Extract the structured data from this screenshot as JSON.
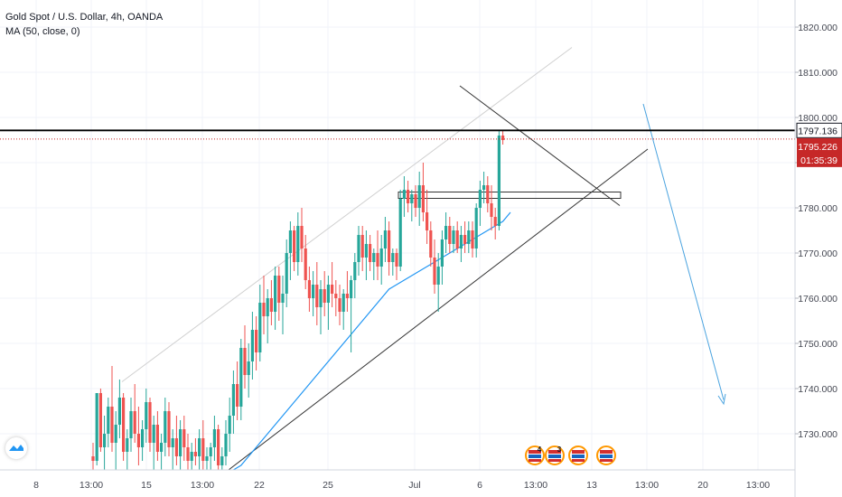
{
  "header": {
    "symbol_line": "Gold Spot / U.S. Dollar, 4h, OANDA",
    "indicator_line": "MA (50, close, 0)"
  },
  "colors": {
    "up": "#26a69a",
    "down": "#ef5350",
    "ma": "#2196f3",
    "projection": "#4aa3df",
    "current_price_bg": "#c62828",
    "level_line": "#000000"
  },
  "chart_data": {
    "type": "candlestick",
    "y_axis": {
      "min": 1722,
      "max": 1826,
      "ticks": [
        1730,
        1740,
        1750,
        1760,
        1770,
        1780,
        1790,
        1800,
        1810,
        1820
      ],
      "tick_labels": [
        "1730.000",
        "1740.000",
        "1750.000",
        "1760.000",
        "1770.000",
        "1780.000",
        "1790.000",
        "1800.000",
        "1810.000",
        "1820.000"
      ]
    },
    "x_axis": {
      "tick_labels": [
        "8",
        "13:00",
        "15",
        "13:00",
        "22",
        "25",
        "Jul",
        "6",
        "13:00",
        "13",
        "13:00",
        "20",
        "13:00"
      ]
    },
    "price_labels": {
      "level": "1797.136",
      "current": "1795.226",
      "countdown": "01:35:39"
    },
    "level_value": 1797.136,
    "current_value": 1795.226,
    "candles": [
      [
        1725,
        1728,
        1722,
        1724
      ],
      [
        1724,
        1739,
        1723,
        1739
      ],
      [
        1739,
        1740,
        1726,
        1727
      ],
      [
        1727,
        1734,
        1722,
        1730
      ],
      [
        1730,
        1738,
        1727,
        1736
      ],
      [
        1736,
        1745,
        1726,
        1728
      ],
      [
        1728,
        1735,
        1722,
        1732
      ],
      [
        1732,
        1742,
        1729,
        1738
      ],
      [
        1738,
        1739,
        1724,
        1726
      ],
      [
        1726,
        1731,
        1722,
        1729
      ],
      [
        1729,
        1738,
        1726,
        1735
      ],
      [
        1735,
        1741,
        1728,
        1730
      ],
      [
        1730,
        1736,
        1723,
        1727
      ],
      [
        1727,
        1733,
        1724,
        1731
      ],
      [
        1731,
        1740,
        1728,
        1737
      ],
      [
        1737,
        1738,
        1726,
        1728
      ],
      [
        1728,
        1734,
        1722,
        1732
      ],
      [
        1732,
        1735,
        1724,
        1726
      ],
      [
        1726,
        1730,
        1722,
        1728
      ],
      [
        1728,
        1738,
        1725,
        1735
      ],
      [
        1735,
        1737,
        1725,
        1727
      ],
      [
        1727,
        1731,
        1722,
        1729
      ],
      [
        1729,
        1734,
        1723,
        1725
      ],
      [
        1725,
        1733,
        1722,
        1731
      ],
      [
        1731,
        1734,
        1724,
        1727
      ],
      [
        1727,
        1730,
        1722,
        1724
      ],
      [
        1724,
        1728,
        1722,
        1726
      ],
      [
        1726,
        1729,
        1723,
        1725
      ],
      [
        1725,
        1731,
        1722,
        1729
      ],
      [
        1729,
        1733,
        1722,
        1724
      ],
      [
        1724,
        1727,
        1722,
        1725
      ],
      [
        1725,
        1728,
        1722,
        1727
      ],
      [
        1727,
        1734,
        1724,
        1731
      ],
      [
        1731,
        1732,
        1722,
        1723
      ],
      [
        1723,
        1727,
        1722,
        1725
      ],
      [
        1725,
        1733,
        1723,
        1730
      ],
      [
        1730,
        1738,
        1726,
        1734
      ],
      [
        1734,
        1744,
        1730,
        1741
      ],
      [
        1741,
        1746,
        1733,
        1736
      ],
      [
        1736,
        1751,
        1733,
        1749
      ],
      [
        1749,
        1754,
        1740,
        1743
      ],
      [
        1743,
        1750,
        1738,
        1746
      ],
      [
        1746,
        1757,
        1742,
        1753
      ],
      [
        1753,
        1756,
        1744,
        1748
      ],
      [
        1748,
        1763,
        1746,
        1759
      ],
      [
        1759,
        1765,
        1752,
        1756
      ],
      [
        1756,
        1762,
        1750,
        1760
      ],
      [
        1760,
        1764,
        1754,
        1757
      ],
      [
        1757,
        1767,
        1753,
        1765
      ],
      [
        1765,
        1767,
        1755,
        1759
      ],
      [
        1759,
        1765,
        1752,
        1761
      ],
      [
        1761,
        1773,
        1758,
        1770
      ],
      [
        1770,
        1777,
        1764,
        1775
      ],
      [
        1775,
        1776,
        1766,
        1768
      ],
      [
        1768,
        1779,
        1765,
        1776
      ],
      [
        1776,
        1780,
        1768,
        1771
      ],
      [
        1771,
        1774,
        1762,
        1764
      ],
      [
        1764,
        1767,
        1757,
        1760
      ],
      [
        1760,
        1766,
        1756,
        1763
      ],
      [
        1763,
        1768,
        1754,
        1758
      ],
      [
        1758,
        1764,
        1752,
        1762
      ],
      [
        1762,
        1766,
        1756,
        1759
      ],
      [
        1759,
        1765,
        1753,
        1763
      ],
      [
        1763,
        1768,
        1758,
        1761
      ],
      [
        1761,
        1764,
        1756,
        1760
      ],
      [
        1760,
        1763,
        1754,
        1757
      ],
      [
        1757,
        1762,
        1753,
        1761
      ],
      [
        1761,
        1766,
        1757,
        1760
      ],
      [
        1760,
        1765,
        1748,
        1764
      ],
      [
        1764,
        1770,
        1760,
        1768
      ],
      [
        1768,
        1776,
        1765,
        1774
      ],
      [
        1774,
        1776,
        1766,
        1769
      ],
      [
        1769,
        1775,
        1764,
        1772
      ],
      [
        1772,
        1774,
        1766,
        1768
      ],
      [
        1768,
        1771,
        1764,
        1770
      ],
      [
        1770,
        1775,
        1764,
        1767
      ],
      [
        1767,
        1774,
        1763,
        1771
      ],
      [
        1771,
        1778,
        1768,
        1775
      ],
      [
        1775,
        1777,
        1765,
        1768
      ],
      [
        1768,
        1771,
        1765,
        1770
      ],
      [
        1770,
        1771,
        1764,
        1767
      ],
      [
        1767,
        1784,
        1766,
        1782
      ],
      [
        1782,
        1787,
        1778,
        1784
      ],
      [
        1784,
        1786,
        1779,
        1781
      ],
      [
        1781,
        1784,
        1777,
        1783
      ],
      [
        1783,
        1785,
        1778,
        1780
      ],
      [
        1780,
        1788,
        1776,
        1785
      ],
      [
        1785,
        1790,
        1777,
        1779
      ],
      [
        1779,
        1784,
        1772,
        1775
      ],
      [
        1775,
        1777,
        1767,
        1769
      ],
      [
        1769,
        1773,
        1761,
        1763
      ],
      [
        1763,
        1770,
        1757,
        1767
      ],
      [
        1767,
        1775,
        1763,
        1773
      ],
      [
        1773,
        1779,
        1770,
        1776
      ],
      [
        1776,
        1778,
        1770,
        1772
      ],
      [
        1772,
        1776,
        1770,
        1775
      ],
      [
        1775,
        1777,
        1770,
        1771
      ],
      [
        1771,
        1776,
        1768,
        1774
      ],
      [
        1774,
        1777,
        1770,
        1772
      ],
      [
        1772,
        1777,
        1770,
        1775
      ],
      [
        1775,
        1777,
        1769,
        1771
      ],
      [
        1771,
        1781,
        1769,
        1780
      ],
      [
        1780,
        1786,
        1776,
        1784
      ],
      [
        1784,
        1788,
        1781,
        1785
      ],
      [
        1785,
        1787,
        1779,
        1781
      ],
      [
        1781,
        1785,
        1775,
        1778
      ],
      [
        1778,
        1780,
        1773,
        1776
      ],
      [
        1776,
        1797,
        1775,
        1796
      ],
      [
        1796,
        1797,
        1794,
        1795
      ]
    ],
    "moving_average": {
      "label": "MA (50, close, 0)",
      "start_index": 37,
      "values": [
        1722,
        1722.5,
        1723,
        1724,
        1725,
        1726,
        1727,
        1728,
        1729,
        1730,
        1731,
        1732,
        1733,
        1734,
        1735,
        1736,
        1737,
        1738,
        1739,
        1740,
        1741,
        1742,
        1743,
        1744,
        1745,
        1746,
        1747,
        1748,
        1749,
        1750,
        1751,
        1752,
        1753,
        1754,
        1755,
        1756,
        1757,
        1758,
        1759,
        1760,
        1761,
        1762,
        1762.5,
        1763,
        1763.5,
        1764,
        1764.5,
        1765,
        1765.5,
        1766,
        1766.5,
        1767,
        1767.5,
        1768,
        1768.5,
        1769,
        1769.5,
        1770,
        1770.5,
        1771,
        1771.5,
        1772,
        1772.5,
        1773,
        1773.5,
        1774,
        1774.5,
        1775,
        1775.5,
        1776,
        1776.5,
        1777,
        1778,
        1779
      ]
    },
    "events_counts": [
      "4",
      "3"
    ]
  }
}
